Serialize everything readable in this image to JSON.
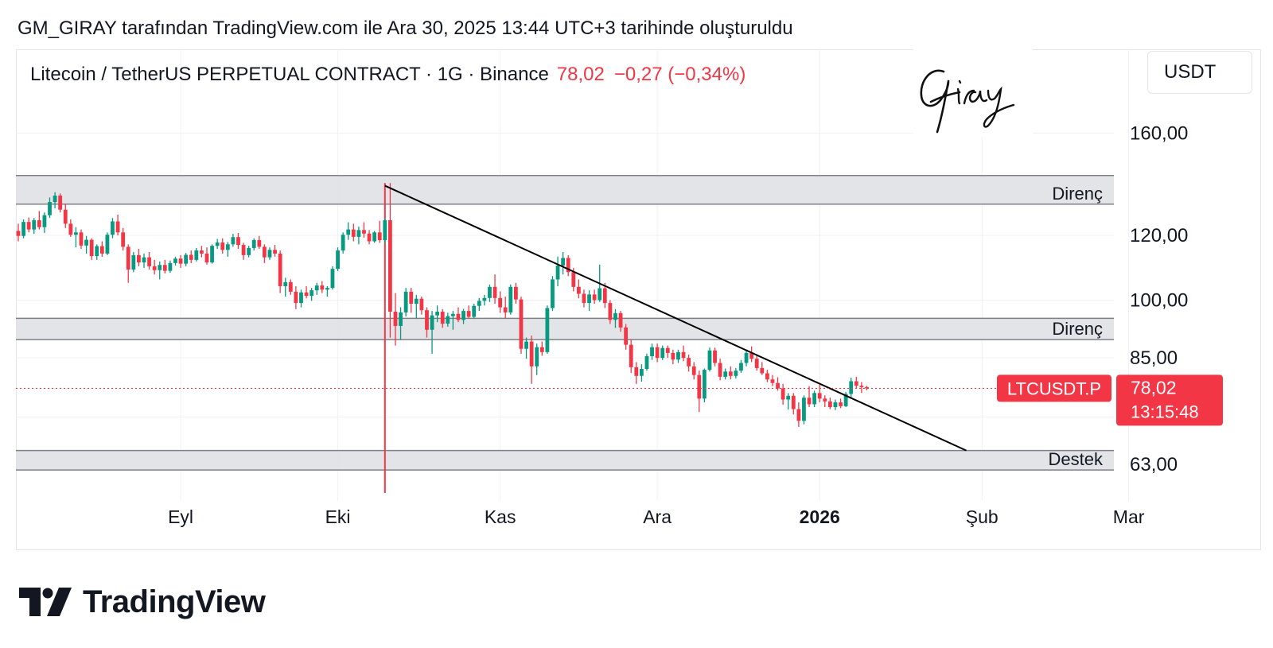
{
  "attribution": "GM_GIRAY tarafından TradingView.com ile Ara 30, 2025 13:44 UTC+3 tarihinde oluşturuldu",
  "header": {
    "symbol": "Litecoin / TetherUS PERPETUAL CONTRACT · 1G · Binance",
    "price": "78,02",
    "change": "−0,27 (−0,34%)"
  },
  "currency_label": "USDT",
  "signature": "Giray",
  "brand": "TradingView",
  "colors": {
    "up": "#089981",
    "down": "#f23645",
    "zone_fill": "#e0e1e4",
    "zone_border": "#7e8087",
    "trend": "#000000"
  },
  "chart_data": {
    "type": "candlestick",
    "x_ticks": [
      "Eyl",
      "Eki",
      "Kas",
      "Ara",
      "2026",
      "Şub",
      "Mar"
    ],
    "y_ticks": [
      "160,00",
      "120,00",
      "100,00",
      "85,00",
      "63,00"
    ],
    "y_tick_values": [
      160,
      120,
      100,
      85,
      63
    ],
    "ylim": [
      58,
      190
    ],
    "y_scale": "log",
    "zones": [
      {
        "label": "Direnç",
        "low": 131,
        "high": 142
      },
      {
        "label": "Direnç",
        "low": 89.5,
        "high": 95
      },
      {
        "label": "Destek",
        "low": 62,
        "high": 65.5
      }
    ],
    "trendline": {
      "from": {
        "date": "2025-10-10",
        "price": 138
      },
      "to": {
        "date": "2026-01-29",
        "price": 65.5
      }
    },
    "event_line": {
      "date": "2025-10-10"
    },
    "last_price": {
      "value": 78.02,
      "ticker": "LTCUSDT.P",
      "price_label": "78,02",
      "countdown": "13:15:48"
    },
    "candle_interval": "1D",
    "start_date": "2025-08-01",
    "candles": [
      [
        121.5,
        124.0,
        118.0,
        119.8
      ],
      [
        119.8,
        125.5,
        119.0,
        124.6
      ],
      [
        124.6,
        126.2,
        121.0,
        122.0
      ],
      [
        122.0,
        126.0,
        120.5,
        125.2
      ],
      [
        125.2,
        128.5,
        122.0,
        122.8
      ],
      [
        122.8,
        128.0,
        120.8,
        127.0
      ],
      [
        127.0,
        133.5,
        126.0,
        131.8
      ],
      [
        131.8,
        135.5,
        129.5,
        134.2
      ],
      [
        134.2,
        135.0,
        128.0,
        129.0
      ],
      [
        129.0,
        131.2,
        122.5,
        124.0
      ],
      [
        124.0,
        125.5,
        119.5,
        120.2
      ],
      [
        120.2,
        122.8,
        116.0,
        121.0
      ],
      [
        121.0,
        122.0,
        115.5,
        116.6
      ],
      [
        116.6,
        119.8,
        114.0,
        118.5
      ],
      [
        118.5,
        119.0,
        112.0,
        113.2
      ],
      [
        113.2,
        117.0,
        112.0,
        116.4
      ],
      [
        116.4,
        118.0,
        113.0,
        114.0
      ],
      [
        114.0,
        121.0,
        113.5,
        120.2
      ],
      [
        120.2,
        126.0,
        119.0,
        124.8
      ],
      [
        124.8,
        127.2,
        120.0,
        121.0
      ],
      [
        121.0,
        122.5,
        115.0,
        116.2
      ],
      [
        116.2,
        117.0,
        105.0,
        109.0
      ],
      [
        109.0,
        114.5,
        108.2,
        113.5
      ],
      [
        113.5,
        115.5,
        110.0,
        111.2
      ],
      [
        111.2,
        114.0,
        109.5,
        112.8
      ],
      [
        112.8,
        114.5,
        109.0,
        110.0
      ],
      [
        110.0,
        112.0,
        107.5,
        108.8
      ],
      [
        108.8,
        111.5,
        106.0,
        110.4
      ],
      [
        110.4,
        112.0,
        107.8,
        108.6
      ],
      [
        108.6,
        111.8,
        108.0,
        111.0
      ],
      [
        111.0,
        113.0,
        110.2,
        112.4
      ],
      [
        112.4,
        113.5,
        109.5,
        110.8
      ],
      [
        110.8,
        114.2,
        110.0,
        113.6
      ],
      [
        113.6,
        115.0,
        111.0,
        112.0
      ],
      [
        112.0,
        115.8,
        111.5,
        115.0
      ],
      [
        115.0,
        116.5,
        112.8,
        114.0
      ],
      [
        114.0,
        116.0,
        110.5,
        111.2
      ],
      [
        111.2,
        117.0,
        110.8,
        116.5
      ],
      [
        116.5,
        118.8,
        115.5,
        117.6
      ],
      [
        117.6,
        119.0,
        114.0,
        115.2
      ],
      [
        115.2,
        117.8,
        113.0,
        117.0
      ],
      [
        117.0,
        120.5,
        116.2,
        119.4
      ],
      [
        119.4,
        120.8,
        115.5,
        116.8
      ],
      [
        116.8,
        117.5,
        112.0,
        113.5
      ],
      [
        113.5,
        116.5,
        112.8,
        115.8
      ],
      [
        115.8,
        119.0,
        115.0,
        118.4
      ],
      [
        118.4,
        119.8,
        115.5,
        116.2
      ],
      [
        116.2,
        117.0,
        111.0,
        112.8
      ],
      [
        112.8,
        116.0,
        112.0,
        115.2
      ],
      [
        115.2,
        116.8,
        113.0,
        114.0
      ],
      [
        114.0,
        115.0,
        102.0,
        104.0
      ],
      [
        104.0,
        106.5,
        101.0,
        105.2
      ],
      [
        105.2,
        106.0,
        101.5,
        102.4
      ],
      [
        102.4,
        104.0,
        97.5,
        99.2
      ],
      [
        99.2,
        103.0,
        98.0,
        102.2
      ],
      [
        102.2,
        104.0,
        100.5,
        101.2
      ],
      [
        101.2,
        103.5,
        99.8,
        102.8
      ],
      [
        102.8,
        105.0,
        101.5,
        104.2
      ],
      [
        104.2,
        105.5,
        102.0,
        103.0
      ],
      [
        103.0,
        104.0,
        101.0,
        103.5
      ],
      [
        103.5,
        110.0,
        103.0,
        109.2
      ],
      [
        109.2,
        116.0,
        108.5,
        115.0
      ],
      [
        115.0,
        121.0,
        114.0,
        120.2
      ],
      [
        120.2,
        124.5,
        118.5,
        122.0
      ],
      [
        122.0,
        124.0,
        118.0,
        119.5
      ],
      [
        119.5,
        123.0,
        117.0,
        121.8
      ],
      [
        121.8,
        124.5,
        119.2,
        120.6
      ],
      [
        120.6,
        121.8,
        117.0,
        118.0
      ],
      [
        118.0,
        121.5,
        117.5,
        121.0
      ],
      [
        121.0,
        125.0,
        117.5,
        118.4
      ],
      [
        118.4,
        126.0,
        117.0,
        125.2
      ],
      [
        125.2,
        139.0,
        90.0,
        96.8
      ],
      [
        96.8,
        102.0,
        88.0,
        93.0
      ],
      [
        93.0,
        98.0,
        89.5,
        96.6
      ],
      [
        96.6,
        103.5,
        95.5,
        102.4
      ],
      [
        102.4,
        103.5,
        96.5,
        99.0
      ],
      [
        99.0,
        101.5,
        95.0,
        100.4
      ],
      [
        100.4,
        101.0,
        96.0,
        97.2
      ],
      [
        97.2,
        98.0,
        90.0,
        92.0
      ],
      [
        92.0,
        97.0,
        86.0,
        95.8
      ],
      [
        95.8,
        98.5,
        94.0,
        96.8
      ],
      [
        96.8,
        97.5,
        92.5,
        93.6
      ],
      [
        93.6,
        96.5,
        92.8,
        95.6
      ],
      [
        95.6,
        97.0,
        92.0,
        96.2
      ],
      [
        96.2,
        98.0,
        94.0,
        94.6
      ],
      [
        94.6,
        97.6,
        93.5,
        97.0
      ],
      [
        97.0,
        98.5,
        95.0,
        95.4
      ],
      [
        95.4,
        99.0,
        95.0,
        98.4
      ],
      [
        98.4,
        100.6,
        97.0,
        99.8
      ],
      [
        99.8,
        101.5,
        98.5,
        100.6
      ],
      [
        100.6,
        104.5,
        99.5,
        103.8
      ],
      [
        103.8,
        107.5,
        99.0,
        100.6
      ],
      [
        100.6,
        102.5,
        96.5,
        98.0
      ],
      [
        98.0,
        101.0,
        95.0,
        96.6
      ],
      [
        96.6,
        104.5,
        96.0,
        103.8
      ],
      [
        103.8,
        105.0,
        99.0,
        100.2
      ],
      [
        100.2,
        101.0,
        86.0,
        87.2
      ],
      [
        87.2,
        90.0,
        84.8,
        89.0
      ],
      [
        89.0,
        90.5,
        79.0,
        83.0
      ],
      [
        83.0,
        88.5,
        81.0,
        87.6
      ],
      [
        87.6,
        89.0,
        85.5,
        86.4
      ],
      [
        86.4,
        98.5,
        86.0,
        97.8
      ],
      [
        97.8,
        107.0,
        97.0,
        106.0
      ],
      [
        106.0,
        113.0,
        104.0,
        110.2
      ],
      [
        110.2,
        114.5,
        107.5,
        112.6
      ],
      [
        112.6,
        113.5,
        107.0,
        108.2
      ],
      [
        108.2,
        109.5,
        102.5,
        103.8
      ],
      [
        103.8,
        106.0,
        100.5,
        101.8
      ],
      [
        101.8,
        103.0,
        98.0,
        99.2
      ],
      [
        99.2,
        102.8,
        97.0,
        101.6
      ],
      [
        101.6,
        103.0,
        99.0,
        100.0
      ],
      [
        100.0,
        110.5,
        99.5,
        103.4
      ],
      [
        103.4,
        105.0,
        97.8,
        99.2
      ],
      [
        99.2,
        100.0,
        93.5,
        94.6
      ],
      [
        94.6,
        97.5,
        92.5,
        96.4
      ],
      [
        96.4,
        97.0,
        91.5,
        92.6
      ],
      [
        92.6,
        93.5,
        87.0,
        88.2
      ],
      [
        88.2,
        89.5,
        81.5,
        82.8
      ],
      [
        82.8,
        84.0,
        79.0,
        80.8
      ],
      [
        80.8,
        83.5,
        79.5,
        82.4
      ],
      [
        82.4,
        86.0,
        82.0,
        85.4
      ],
      [
        85.4,
        88.5,
        84.5,
        87.6
      ],
      [
        87.6,
        88.5,
        84.0,
        85.0
      ],
      [
        85.0,
        88.0,
        84.5,
        87.4
      ],
      [
        87.4,
        88.0,
        85.0,
        86.2
      ],
      [
        86.2,
        87.0,
        83.5,
        84.6
      ],
      [
        84.6,
        87.0,
        83.8,
        86.4
      ],
      [
        86.4,
        88.0,
        84.2,
        85.0
      ],
      [
        85.0,
        85.8,
        81.8,
        83.0
      ],
      [
        83.0,
        84.0,
        80.0,
        81.0
      ],
      [
        81.0,
        82.0,
        73.0,
        75.8
      ],
      [
        75.8,
        82.5,
        75.0,
        82.2
      ],
      [
        82.2,
        87.5,
        81.8,
        86.8
      ],
      [
        86.8,
        87.5,
        83.0,
        83.8
      ],
      [
        83.8,
        84.8,
        79.8,
        80.6
      ],
      [
        80.6,
        82.5,
        80.0,
        81.8
      ],
      [
        81.8,
        83.0,
        80.0,
        80.8
      ],
      [
        80.8,
        82.6,
        80.2,
        82.0
      ],
      [
        82.0,
        84.5,
        81.5,
        83.8
      ],
      [
        83.8,
        87.0,
        83.0,
        86.2
      ],
      [
        86.2,
        87.8,
        84.0,
        84.8
      ],
      [
        84.8,
        85.5,
        82.0,
        82.6
      ],
      [
        82.6,
        84.0,
        81.0,
        81.4
      ],
      [
        81.4,
        82.2,
        79.4,
        80.0
      ],
      [
        80.0,
        81.0,
        78.5,
        79.2
      ],
      [
        79.2,
        80.5,
        77.5,
        78.0
      ],
      [
        78.0,
        79.0,
        74.5,
        75.6
      ],
      [
        75.6,
        77.0,
        73.5,
        76.4
      ],
      [
        76.4,
        77.0,
        72.5,
        73.6
      ],
      [
        73.6,
        75.0,
        70.0,
        71.2
      ],
      [
        71.2,
        76.5,
        70.5,
        76.0
      ],
      [
        76.0,
        78.5,
        74.0,
        74.6
      ],
      [
        74.6,
        77.5,
        74.0,
        77.0
      ],
      [
        77.0,
        78.8,
        75.0,
        75.8
      ],
      [
        75.8,
        76.5,
        74.0,
        75.2
      ],
      [
        75.2,
        76.0,
        73.6,
        74.0
      ],
      [
        74.0,
        75.6,
        73.4,
        75.0
      ],
      [
        75.0,
        75.8,
        73.8,
        74.2
      ],
      [
        74.2,
        77.2,
        74.0,
        76.8
      ],
      [
        76.8,
        80.4,
        76.0,
        79.6
      ],
      [
        79.6,
        80.6,
        78.0,
        78.6
      ],
      [
        78.6,
        79.4,
        77.0,
        78.29
      ],
      [
        78.29,
        78.6,
        77.6,
        78.02
      ]
    ]
  }
}
